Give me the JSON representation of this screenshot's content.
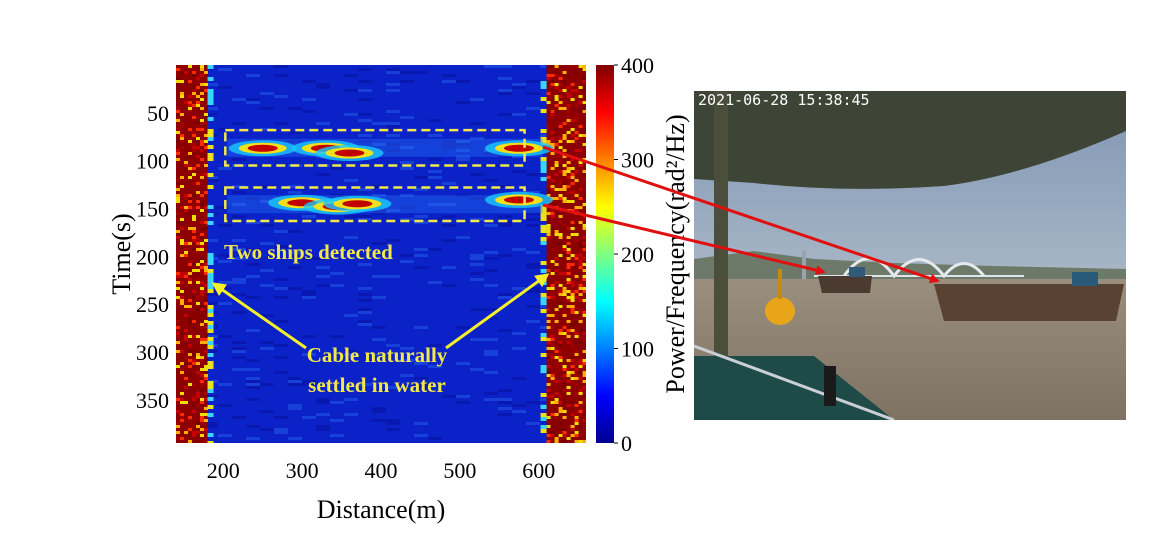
{
  "chart_data": {
    "type": "heatmap",
    "xlabel": "Distance(m)",
    "ylabel": "Time(s)",
    "colorbar_label": "Power/Frequency(rad²/Hz)",
    "xlim": [
      140,
      660
    ],
    "ylim": [
      0,
      395
    ],
    "y_reversed": true,
    "clim": [
      0,
      400
    ],
    "colormap": "jet",
    "x_ticks": [
      200,
      300,
      400,
      500,
      600
    ],
    "y_ticks": [
      50,
      100,
      150,
      200,
      250,
      300,
      350
    ],
    "colorbar_ticks": [
      0,
      100,
      200,
      300,
      400
    ],
    "edge_bands": [
      {
        "x_start": 140,
        "x_end": 180,
        "level": 400
      },
      {
        "x_start": 610,
        "x_end": 660,
        "level": 400
      }
    ],
    "detections": [
      {
        "name": "ship 1",
        "time_start": 68,
        "time_end": 105,
        "distance_start": 200,
        "distance_end": 610,
        "hotspots": [
          {
            "distance": 250,
            "time": 87
          },
          {
            "distance": 330,
            "time": 87
          },
          {
            "distance": 360,
            "time": 92
          },
          {
            "distance": 575,
            "time": 87
          }
        ]
      },
      {
        "name": "ship 2",
        "time_start": 128,
        "time_end": 163,
        "distance_start": 200,
        "distance_end": 610,
        "hotspots": [
          {
            "distance": 300,
            "time": 144
          },
          {
            "distance": 345,
            "time": 148
          },
          {
            "distance": 370,
            "time": 145
          },
          {
            "distance": 575,
            "time": 141
          }
        ]
      }
    ],
    "annotations": [
      "Two ships detected",
      "Cable naturally",
      "settled in water"
    ]
  },
  "photo": {
    "timestamp": "2021-06-28 15:38:45",
    "description_colors": {
      "sky": "#8fa3bd",
      "water": "#8c7f6c",
      "buoy": "#e8a51a",
      "bridge": "#dfe4ea"
    }
  },
  "colors": {
    "box": "#f2e84a",
    "arrow_red": "#e01010",
    "arrow_yellow": "#f5ef2a"
  }
}
